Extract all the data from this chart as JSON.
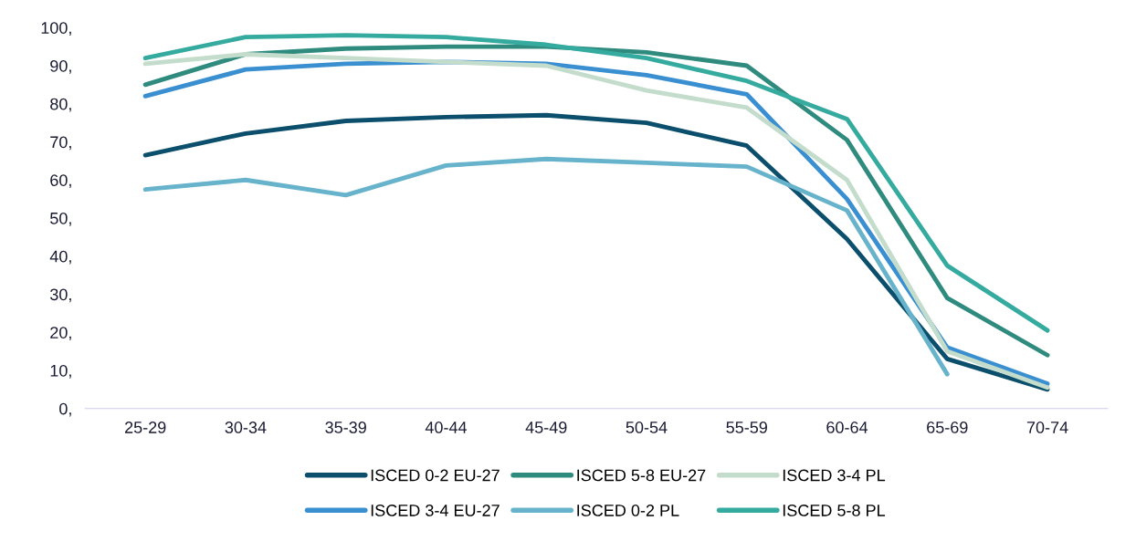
{
  "chart_data": {
    "type": "line",
    "categories": [
      "25-29",
      "30-34",
      "35-39",
      "40-44",
      "45-49",
      "50-54",
      "55-59",
      "60-64",
      "65-69",
      "70-74"
    ],
    "series": [
      {
        "name": "ISCED 0-2 EU-27",
        "color": "#0b4f6c",
        "values": [
          66.5,
          72.2,
          75.5,
          76.5,
          77,
          75,
          69,
          44.5,
          13,
          5
        ]
      },
      {
        "name": "ISCED 3-4 EU-27",
        "color": "#3a8fd1",
        "values": [
          82,
          89,
          90.5,
          91,
          90.5,
          87.5,
          82.5,
          55,
          16,
          6.5
        ]
      },
      {
        "name": "ISCED 5-8 EU-27",
        "color": "#2e8b7e",
        "values": [
          85,
          93,
          94.5,
          95,
          95,
          93.5,
          90,
          70.5,
          29,
          14
        ]
      },
      {
        "name": "ISCED 0-2 PL",
        "color": "#67b3cb",
        "values": [
          57.5,
          60,
          56,
          63.8,
          65.5,
          64.5,
          63.5,
          52,
          9,
          null
        ]
      },
      {
        "name": "ISCED 3-4 PL",
        "color": "#c3dccb",
        "values": [
          90.5,
          93,
          92,
          91,
          90,
          83.5,
          79,
          60,
          15,
          5.5
        ]
      },
      {
        "name": "ISCED 5-8 PL",
        "color": "#35aba0",
        "values": [
          92,
          97.5,
          98,
          97.5,
          95.5,
          92,
          86,
          76,
          37.5,
          20.5
        ]
      }
    ],
    "ylim": [
      0,
      100
    ],
    "yticks": [
      {
        "value": 0,
        "label": "0,"
      },
      {
        "value": 10,
        "label": "10,"
      },
      {
        "value": 20,
        "label": "20,"
      },
      {
        "value": 30,
        "label": "30,"
      },
      {
        "value": 40,
        "label": "40,"
      },
      {
        "value": 50,
        "label": "50,"
      },
      {
        "value": 60,
        "label": "60,"
      },
      {
        "value": 70,
        "label": "70,"
      },
      {
        "value": 80,
        "label": "80,"
      },
      {
        "value": 90,
        "label": "90,"
      },
      {
        "value": 100,
        "label": "100,"
      }
    ],
    "grid": false,
    "legend": "bottom",
    "marker": "none",
    "line_style": "solid"
  }
}
